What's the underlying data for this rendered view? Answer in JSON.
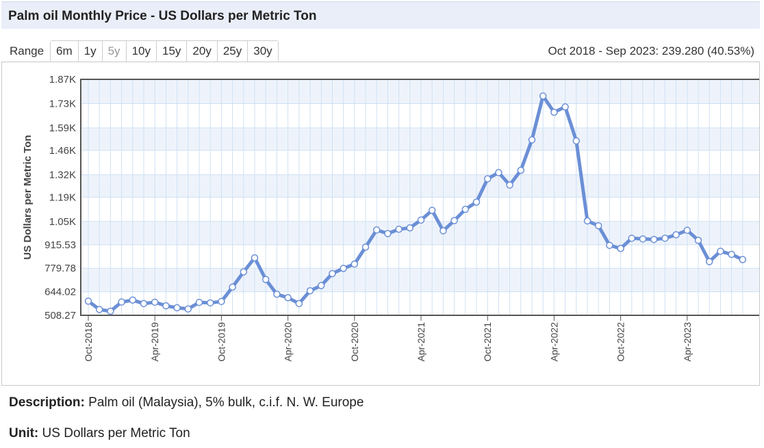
{
  "header": {
    "title": "Palm oil Monthly Price - US Dollars per Metric Ton"
  },
  "range": {
    "label": "Range",
    "buttons": [
      {
        "label": "6m",
        "disabled": false
      },
      {
        "label": "1y",
        "disabled": false
      },
      {
        "label": "5y",
        "disabled": true
      },
      {
        "label": "10y",
        "disabled": false
      },
      {
        "label": "15y",
        "disabled": false
      },
      {
        "label": "20y",
        "disabled": false
      },
      {
        "label": "25y",
        "disabled": false
      },
      {
        "label": "30y",
        "disabled": false
      }
    ],
    "summary": "Oct 2018 - Sep 2023: 239.280 (40.53%)"
  },
  "chart_data": {
    "type": "line",
    "title": "",
    "xlabel": "",
    "ylabel": "US Dollars per Metric Ton",
    "ylim": [
      508.27,
      1870
    ],
    "yticks": [
      508.27,
      644.02,
      779.78,
      915.53,
      1050,
      1190,
      1320,
      1460,
      1590,
      1730,
      1870
    ],
    "ytick_labels": [
      "508.27",
      "644.02",
      "779.78",
      "915.53",
      "1.05K",
      "1.19K",
      "1.32K",
      "1.46K",
      "1.59K",
      "1.73K",
      "1.87K"
    ],
    "x": [
      "Oct-2018",
      "Nov-2018",
      "Dec-2018",
      "Jan-2019",
      "Feb-2019",
      "Mar-2019",
      "Apr-2019",
      "May-2019",
      "Jun-2019",
      "Jul-2019",
      "Aug-2019",
      "Sep-2019",
      "Oct-2019",
      "Nov-2019",
      "Dec-2019",
      "Jan-2020",
      "Feb-2020",
      "Mar-2020",
      "Apr-2020",
      "May-2020",
      "Jun-2020",
      "Jul-2020",
      "Aug-2020",
      "Sep-2020",
      "Oct-2020",
      "Nov-2020",
      "Dec-2020",
      "Jan-2021",
      "Feb-2021",
      "Mar-2021",
      "Apr-2021",
      "May-2021",
      "Jun-2021",
      "Jul-2021",
      "Aug-2021",
      "Sep-2021",
      "Oct-2021",
      "Nov-2021",
      "Dec-2021",
      "Jan-2022",
      "Feb-2022",
      "Mar-2022",
      "Apr-2022",
      "May-2022",
      "Jun-2022",
      "Jul-2022",
      "Aug-2022",
      "Sep-2022",
      "Oct-2022",
      "Nov-2022",
      "Dec-2022",
      "Jan-2023",
      "Feb-2023",
      "Mar-2023",
      "Apr-2023",
      "May-2023",
      "Jun-2023",
      "Jul-2023",
      "Aug-2023",
      "Sep-2023"
    ],
    "xtick_labels": [
      "Oct-2018",
      "Apr-2019",
      "Oct-2019",
      "Apr-2020",
      "Oct-2020",
      "Apr-2021",
      "Oct-2021",
      "Apr-2022",
      "Oct-2022",
      "Apr-2023"
    ],
    "series": [
      {
        "values": [
          590,
          542,
          532,
          585,
          596,
          576,
          584,
          563,
          552,
          545,
          583,
          580,
          588,
          671,
          759,
          840,
          715,
          630,
          610,
          576,
          650,
          680,
          749,
          779,
          804,
          902,
          1001,
          980,
          1005,
          1013,
          1058,
          1114,
          996,
          1055,
          1120,
          1162,
          1296,
          1332,
          1260,
          1345,
          1521,
          1774,
          1680,
          1711,
          1515,
          1053,
          1025,
          912,
          894,
          953,
          949,
          946,
          953,
          973,
          999,
          941,
          818,
          878,
          860,
          830
        ]
      }
    ],
    "grid": true,
    "legend": "none",
    "line_color": "#6b8fd6",
    "band_color": "#eef3fb",
    "grid_color": "#cfe0f3"
  },
  "info": {
    "description_label": "Description:",
    "description_value": "Palm oil (Malaysia), 5% bulk, c.i.f. N. W. Europe",
    "unit_label": "Unit:",
    "unit_value": "US Dollars per Metric Ton"
  }
}
